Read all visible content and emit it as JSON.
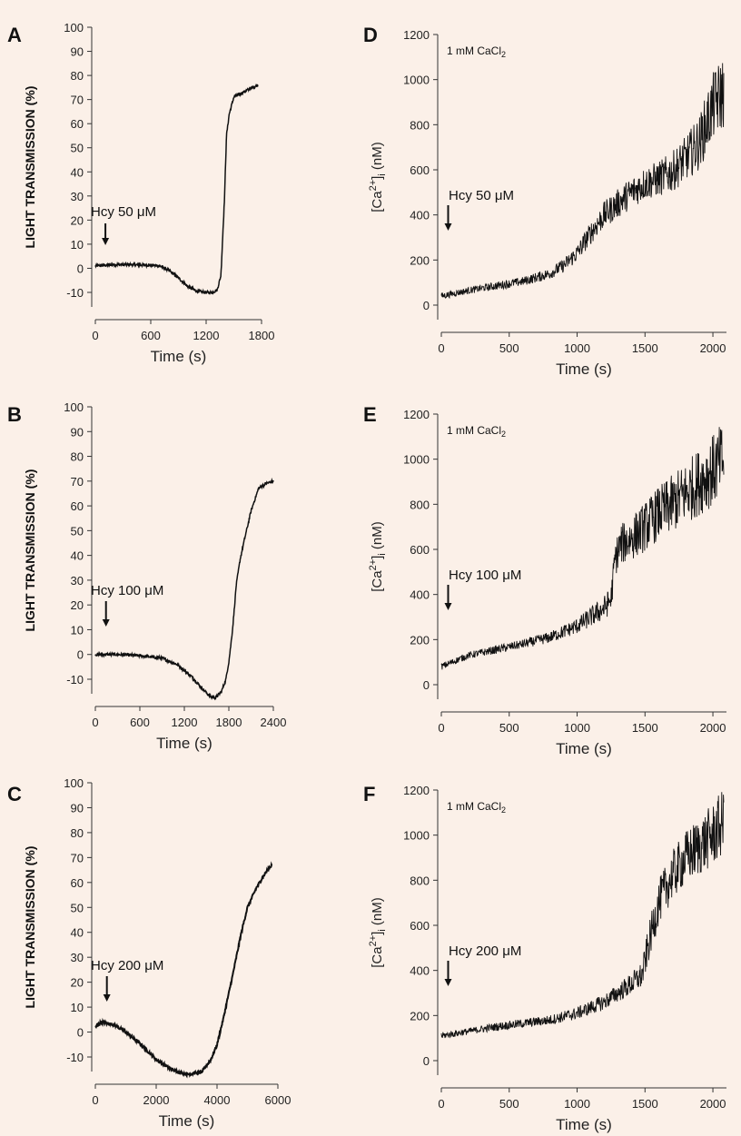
{
  "chart_data": [
    {
      "panel": "A",
      "type": "line",
      "xlabel": "Time (s)",
      "ylabel": "LIGHT TRANSMISSION (%)",
      "xlim": [
        0,
        1800
      ],
      "ylim": [
        -15,
        100
      ],
      "xticks": [
        "0",
        "600",
        "1200",
        "1800"
      ],
      "yticks": [
        "-10",
        "0",
        "10",
        "20",
        "30",
        "40",
        "50",
        "60",
        "70",
        "80",
        "90",
        "100"
      ],
      "annotation": {
        "text": "Hcy 50 μM",
        "x": 50
      },
      "series": [
        {
          "x": [
            0,
            200,
            400,
            600,
            700,
            800,
            900,
            1000,
            1100,
            1200,
            1260,
            1320,
            1360,
            1400,
            1420,
            1450,
            1500,
            1600,
            1700,
            1760
          ],
          "y": [
            1,
            1.5,
            1.5,
            1.3,
            1,
            -1,
            -4,
            -7.5,
            -9.5,
            -10,
            -10,
            -9,
            -3,
            30,
            55,
            64,
            71,
            73,
            75,
            76
          ]
        }
      ]
    },
    {
      "panel": "B",
      "type": "line",
      "xlabel": "Time (s)",
      "ylabel": "LIGHT TRANSMISSION (%)",
      "xlim": [
        0,
        2400
      ],
      "ylim": [
        -20,
        100
      ],
      "xticks": [
        "0",
        "600",
        "1200",
        "1800",
        "2400"
      ],
      "yticks": [
        "-10",
        "0",
        "10",
        "20",
        "30",
        "40",
        "50",
        "60",
        "70",
        "80",
        "90",
        "100"
      ],
      "annotation": {
        "text": "Hcy 100 μM",
        "x": 70
      },
      "series": [
        {
          "x": [
            0,
            300,
            600,
            900,
            1100,
            1300,
            1450,
            1550,
            1620,
            1700,
            1760,
            1800,
            1850,
            1900,
            1950,
            2000,
            2100,
            2200,
            2300,
            2400
          ],
          "y": [
            0,
            0,
            -0.5,
            -1.5,
            -4,
            -9,
            -14,
            -17,
            -17.5,
            -15,
            -10,
            -3,
            10,
            28,
            38,
            45,
            58,
            67,
            69,
            70
          ]
        }
      ]
    },
    {
      "panel": "C",
      "type": "line",
      "xlabel": "Time (s)",
      "ylabel": "LIGHT TRANSMISSION (%)",
      "xlim": [
        0,
        6000
      ],
      "ylim": [
        -20,
        100
      ],
      "xticks": [
        "0",
        "2000",
        "4000",
        "6000"
      ],
      "yticks": [
        "-10",
        "0",
        "10",
        "20",
        "30",
        "40",
        "50",
        "60",
        "70",
        "80",
        "90",
        "100"
      ],
      "annotation": {
        "text": "Hcy 200 μM",
        "x": 200
      },
      "series": [
        {
          "x": [
            0,
            200,
            600,
            1000,
            1500,
            2000,
            2500,
            3000,
            3500,
            3800,
            4000,
            4200,
            4500,
            4800,
            5000,
            5300,
            5600,
            5800
          ],
          "y": [
            2,
            4,
            3,
            0,
            -5,
            -11,
            -15,
            -17,
            -16,
            -11,
            -5,
            5,
            22,
            40,
            50,
            58,
            64,
            67
          ]
        }
      ]
    },
    {
      "panel": "D",
      "type": "line",
      "xlabel": "Time (s)",
      "ylabel": "[Ca2+]i (nM)",
      "xlim": [
        0,
        2100
      ],
      "ylim": [
        0,
        1200
      ],
      "xticks": [
        "0",
        "500",
        "1000",
        "1500",
        "2000"
      ],
      "yticks": [
        "0",
        "200",
        "400",
        "600",
        "800",
        "1000",
        "1200"
      ],
      "condition": "1 mM CaCl2",
      "annotation": {
        "text": "Hcy 50 μM",
        "x": 10
      },
      "series": [
        {
          "x": [
            0,
            200,
            400,
            600,
            800,
            900,
            1000,
            1100,
            1200,
            1300,
            1400,
            1500,
            1600,
            1700,
            1800,
            1900,
            2000,
            2080
          ],
          "y": [
            40,
            65,
            85,
            105,
            140,
            175,
            230,
            320,
            400,
            450,
            500,
            540,
            560,
            590,
            650,
            720,
            880,
            950
          ],
          "noise": [
            15,
            15,
            18,
            20,
            25,
            30,
            40,
            50,
            60,
            65,
            70,
            75,
            80,
            90,
            100,
            120,
            150,
            170
          ]
        }
      ]
    },
    {
      "panel": "E",
      "type": "line",
      "xlabel": "Time (s)",
      "ylabel": "[Ca2+]i (nM)",
      "xlim": [
        0,
        2100
      ],
      "ylim": [
        0,
        1200
      ],
      "xticks": [
        "0",
        "500",
        "1000",
        "1500",
        "2000"
      ],
      "yticks": [
        "0",
        "200",
        "400",
        "600",
        "800",
        "1000",
        "1200"
      ],
      "condition": "1 mM CaCl2",
      "annotation": {
        "text": "Hcy 100 μM",
        "x": 10
      },
      "series": [
        {
          "x": [
            0,
            200,
            400,
            600,
            800,
            1000,
            1100,
            1200,
            1250,
            1280,
            1320,
            1400,
            1500,
            1600,
            1700,
            1800,
            1900,
            2000,
            2080
          ],
          "y": [
            80,
            130,
            155,
            180,
            210,
            260,
            300,
            340,
            380,
            560,
            620,
            650,
            700,
            760,
            800,
            850,
            900,
            950,
            1000
          ],
          "noise": [
            15,
            15,
            18,
            20,
            25,
            35,
            45,
            55,
            60,
            80,
            90,
            100,
            110,
            120,
            130,
            140,
            150,
            160,
            170
          ]
        }
      ]
    },
    {
      "panel": "F",
      "type": "line",
      "xlabel": "Time (s)",
      "ylabel": "[Ca2+]i (nM)",
      "xlim": [
        0,
        2100
      ],
      "ylim": [
        0,
        1200
      ],
      "xticks": [
        "0",
        "500",
        "1000",
        "1500",
        "2000"
      ],
      "yticks": [
        "0",
        "200",
        "400",
        "600",
        "800",
        "1000",
        "1200"
      ],
      "condition": "1 mM CaCl2",
      "annotation": {
        "text": "Hcy 200 μM",
        "x": 10
      },
      "series": [
        {
          "x": [
            0,
            200,
            400,
            600,
            800,
            1000,
            1200,
            1300,
            1400,
            1480,
            1520,
            1560,
            1600,
            1700,
            1800,
            1900,
            2000,
            2080
          ],
          "y": [
            110,
            130,
            150,
            165,
            180,
            210,
            260,
            300,
            340,
            380,
            500,
            600,
            700,
            820,
            900,
            950,
            1000,
            1060
          ],
          "noise": [
            15,
            15,
            18,
            20,
            22,
            28,
            35,
            40,
            50,
            60,
            80,
            90,
            100,
            110,
            120,
            130,
            140,
            150
          ]
        }
      ]
    }
  ]
}
